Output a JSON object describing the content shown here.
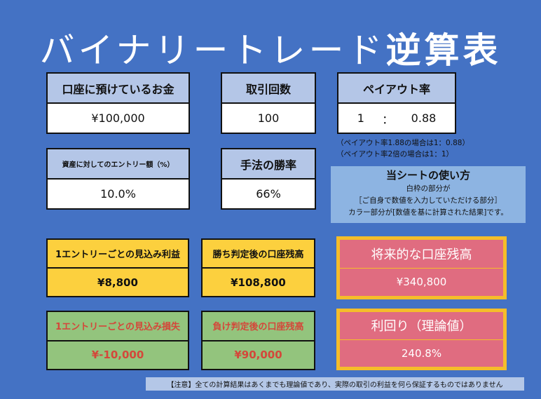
{
  "title": {
    "main": "バイナリートレード",
    "emphasis": "逆算表"
  },
  "inputs": {
    "deposit": {
      "label": "口座に預けているお金",
      "value": "¥100,000"
    },
    "trades": {
      "label": "取引回数",
      "value": "100"
    },
    "payout": {
      "label": "ペイアウト率",
      "left": "1",
      "sep": "：",
      "right": "0.88"
    },
    "entry_ratio": {
      "label": "資産に対してのエントリー額（%）",
      "value": "10.0%"
    },
    "win_rate": {
      "label": "手法の勝率",
      "value": "66%"
    }
  },
  "payout_notes": [
    "（ペイアウト率1.88の場合は1：0.88）",
    "（ペイアウト率2倍の場合は1：1）"
  ],
  "usage": {
    "title": "当シートの使い方",
    "lines": [
      "白枠の部分が",
      "［ご自身で数値を入力していただける部分］",
      "カラー部分が[数値を基に計算された結果]です。"
    ]
  },
  "results": {
    "expected_profit": {
      "label": "1エントリーごとの見込み利益",
      "value": "¥8,800"
    },
    "balance_after_win": {
      "label": "勝ち判定後の口座残高",
      "value": "¥108,800"
    },
    "expected_loss": {
      "label": "1エントリーごとの見込み損失",
      "value": "¥-10,000"
    },
    "balance_after_loss": {
      "label": "負け判定後の口座残高",
      "value": "¥90,000"
    },
    "future_balance": {
      "label": "将来的な口座残高",
      "value": "¥340,800"
    },
    "yield": {
      "label": "利回り（理論値）",
      "value": "240.8%"
    }
  },
  "footer": "【注意】全ての計算結果はあくまでも理論値であり、実際の取引の利益を何ら保証するものではありません",
  "colors": {
    "background": "#4472c4",
    "input_header": "#b4c6e7",
    "yellow": "#fcd03e",
    "green": "#93c47d",
    "pink": "#e06c80",
    "loss_text": "#d4473a"
  }
}
